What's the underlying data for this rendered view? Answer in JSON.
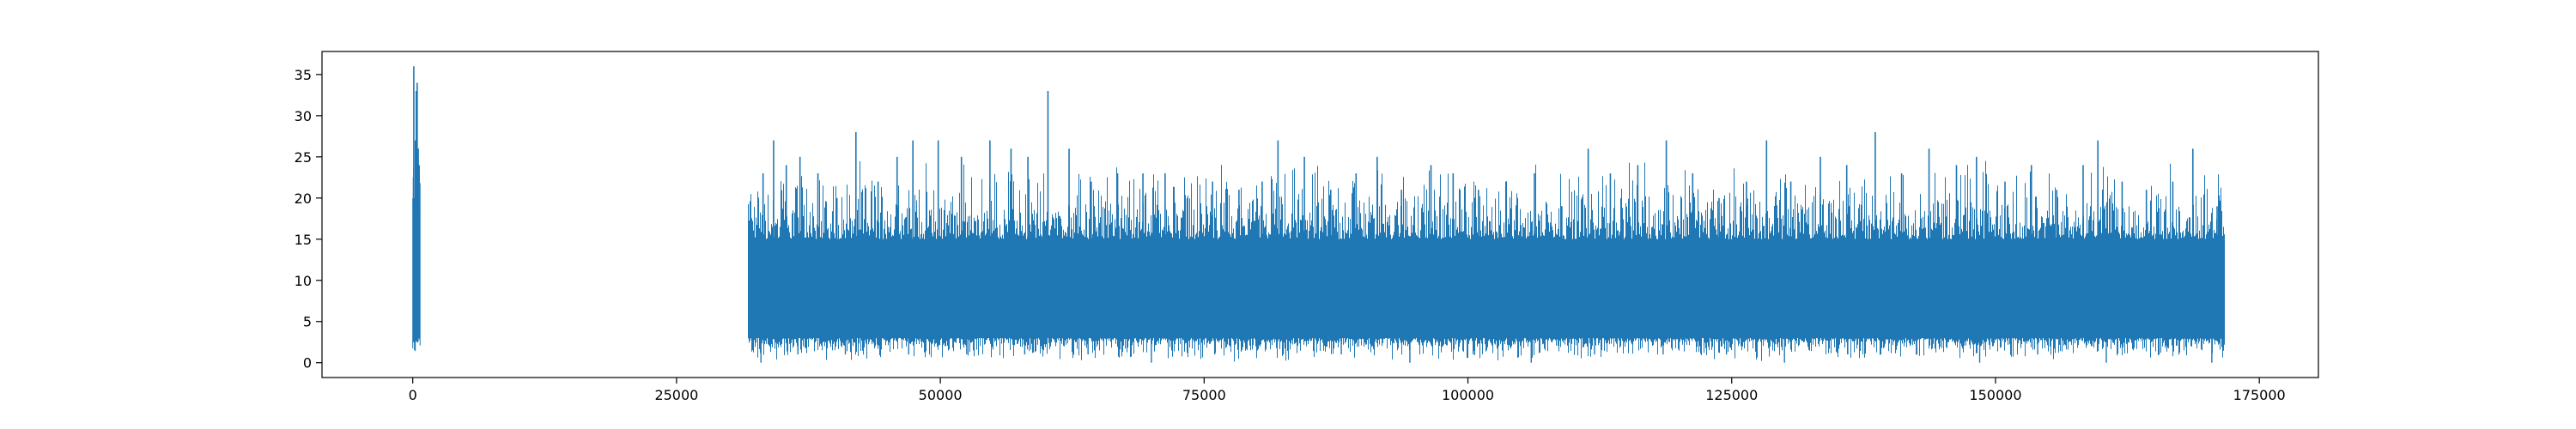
{
  "chart_data": {
    "type": "line",
    "title": "",
    "xlabel": "",
    "ylabel": "",
    "xlim": [
      -8600,
      180600
    ],
    "ylim": [
      -1.8,
      37.8
    ],
    "x_ticks": [
      0,
      25000,
      50000,
      75000,
      100000,
      125000,
      150000,
      175000
    ],
    "x_tick_labels": [
      "0",
      "25000",
      "50000",
      "75000",
      "100000",
      "125000",
      "150000",
      "175000"
    ],
    "y_ticks": [
      0,
      5,
      10,
      15,
      20,
      25,
      30,
      35
    ],
    "y_tick_labels": [
      "0",
      "5",
      "10",
      "15",
      "20",
      "25",
      "30",
      "35"
    ],
    "grid": false,
    "legend": "none",
    "series_color": "#1f77b4",
    "series": [
      {
        "segments": [
          {
            "x_range": [
              0,
              700
            ],
            "band_low": 3,
            "band_high": 18,
            "min": 1,
            "max": 36,
            "peaks": [
              [
                100,
                36
              ],
              [
                180,
                20
              ],
              [
                250,
                27
              ],
              [
                330,
                33
              ],
              [
                420,
                34
              ],
              [
                520,
                26
              ],
              [
                610,
                24
              ]
            ]
          },
          {
            "x_range": [
              31800,
              171700
            ],
            "band_low": 3,
            "band_high": 15,
            "min": 0,
            "max": 33,
            "peaks": [
              [
                32000,
                18
              ],
              [
                33200,
                23
              ],
              [
                34200,
                27
              ],
              [
                35400,
                24
              ],
              [
                36700,
                25
              ],
              [
                38400,
                23
              ],
              [
                40200,
                20
              ],
              [
                42000,
                28
              ],
              [
                44100,
                22
              ],
              [
                45900,
                25
              ],
              [
                47400,
                27
              ],
              [
                49800,
                27
              ],
              [
                52000,
                25
              ],
              [
                54700,
                27
              ],
              [
                56700,
                26
              ],
              [
                58300,
                25
              ],
              [
                60200,
                33
              ],
              [
                62200,
                26
              ],
              [
                64300,
                22
              ],
              [
                66800,
                23
              ],
              [
                69200,
                23
              ],
              [
                71300,
                23
              ],
              [
                73400,
                20
              ],
              [
                75800,
                22
              ],
              [
                78300,
                21
              ],
              [
                80500,
                22
              ],
              [
                82000,
                27
              ],
              [
                84500,
                25
              ],
              [
                87000,
                21
              ],
              [
                89400,
                23
              ],
              [
                91400,
                25
              ],
              [
                93700,
                21
              ],
              [
                96500,
                24
              ],
              [
                98600,
                23
              ],
              [
                101000,
                21
              ],
              [
                103600,
                22
              ],
              [
                106300,
                23
              ],
              [
                108900,
                19
              ],
              [
                111400,
                26
              ],
              [
                113500,
                23
              ],
              [
                116100,
                24
              ],
              [
                118800,
                27
              ],
              [
                121300,
                23
              ],
              [
                123800,
                20
              ],
              [
                126400,
                22
              ],
              [
                128300,
                27
              ],
              [
                130600,
                22
              ],
              [
                133400,
                25
              ],
              [
                135900,
                24
              ],
              [
                138600,
                28
              ],
              [
                141100,
                23
              ],
              [
                143700,
                26
              ],
              [
                146300,
                24
              ],
              [
                148200,
                25
              ],
              [
                150900,
                22
              ],
              [
                153400,
                24
              ],
              [
                155800,
                21
              ],
              [
                158300,
                24
              ],
              [
                159700,
                27
              ],
              [
                162000,
                22
              ],
              [
                164300,
                21
              ],
              [
                166800,
                22
              ],
              [
                168700,
                26
              ],
              [
                171000,
                19
              ]
            ],
            "dips": [
              [
                33000,
                0
              ],
              [
                36500,
                1
              ],
              [
                41000,
                1
              ],
              [
                47000,
                1
              ],
              [
                52500,
                1
              ],
              [
                58000,
                1
              ],
              [
                64000,
                1
              ],
              [
                70000,
                0
              ],
              [
                76000,
                1
              ],
              [
                82500,
                1
              ],
              [
                88000,
                1
              ],
              [
                94500,
                0
              ],
              [
                100500,
                1
              ],
              [
                106000,
                0
              ],
              [
                112000,
                1
              ],
              [
                118500,
                1
              ],
              [
                124500,
                1
              ],
              [
                130000,
                0
              ],
              [
                136000,
                1
              ],
              [
                142500,
                1
              ],
              [
                148500,
                0
              ],
              [
                154000,
                1
              ],
              [
                160500,
                0
              ],
              [
                165500,
                1
              ],
              [
                170500,
                0
              ]
            ]
          }
        ]
      }
    ]
  }
}
